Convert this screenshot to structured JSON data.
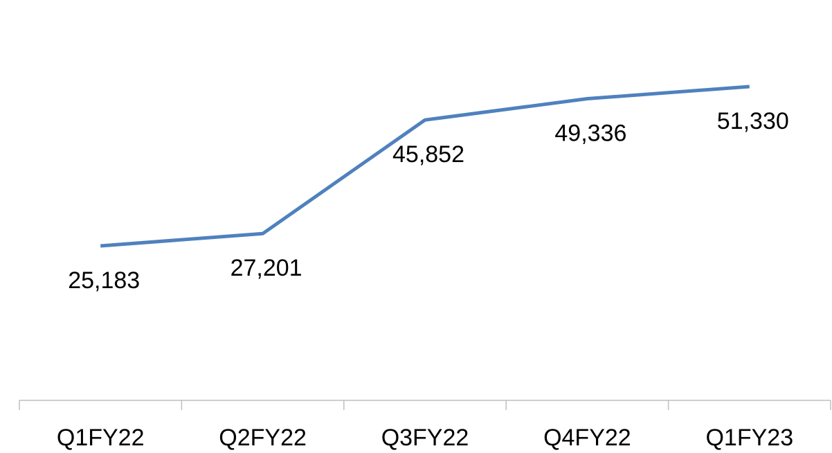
{
  "chart_data": {
    "type": "line",
    "categories": [
      "Q1FY22",
      "Q2FY22",
      "Q3FY22",
      "Q4FY22",
      "Q1FY23"
    ],
    "values": [
      25183,
      27201,
      45852,
      49336,
      51330
    ],
    "value_labels": [
      "25,183",
      "27,201",
      "45,852",
      "49,336",
      "51,330"
    ],
    "color": "#4f81bd"
  }
}
